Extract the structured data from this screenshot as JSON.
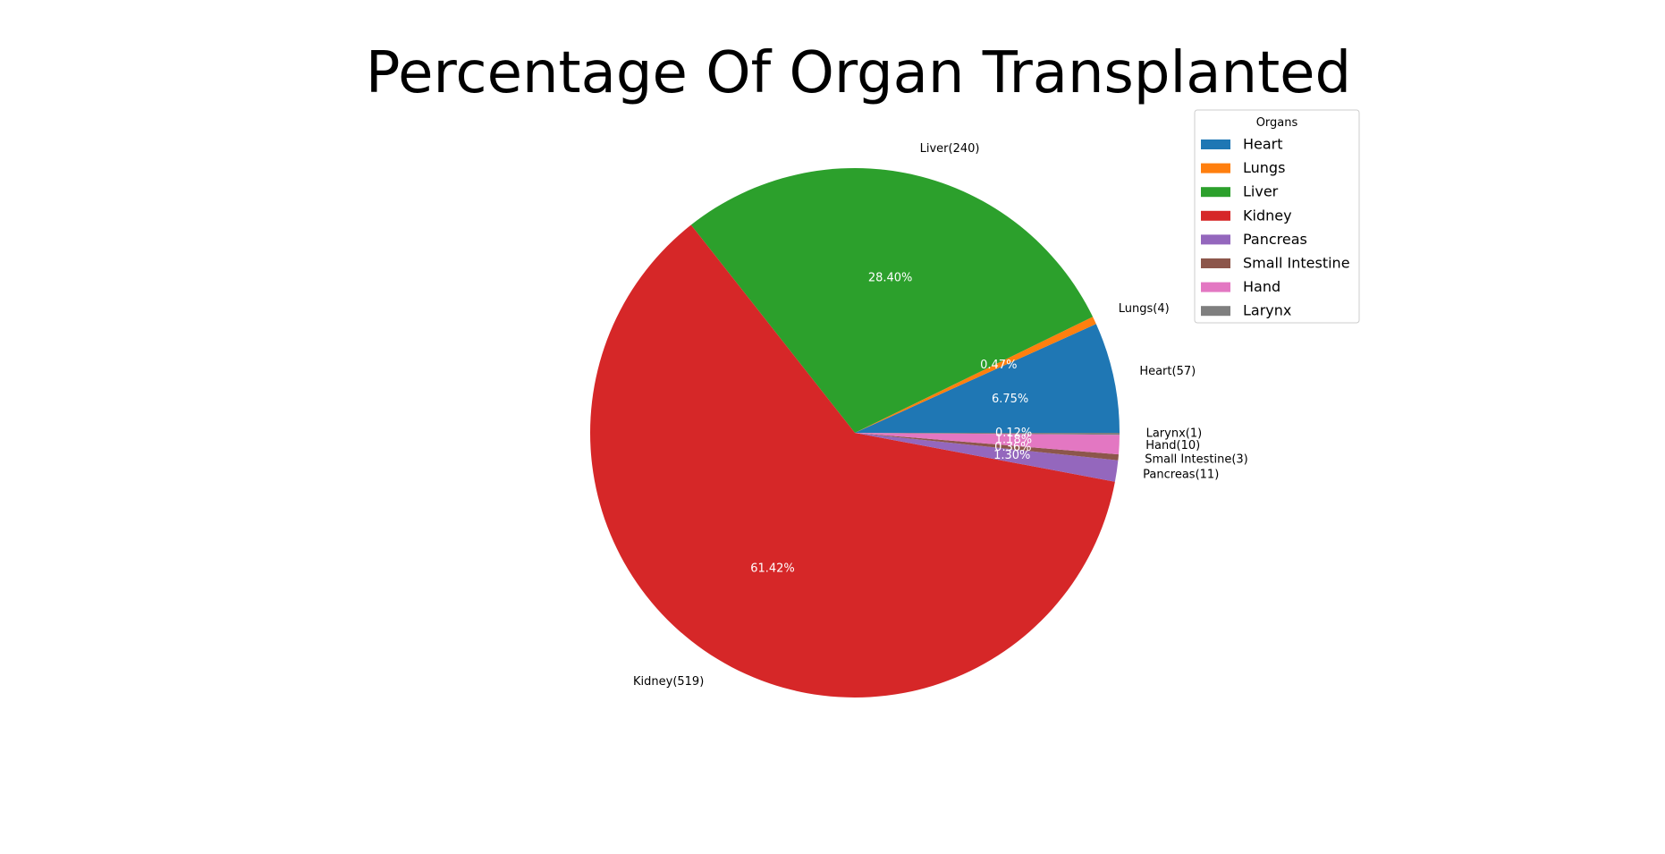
{
  "chart_data": {
    "type": "pie",
    "title": "Percentage Of Organ Transplanted",
    "legend": {
      "title": "Organs",
      "placement": "top-right"
    },
    "slices": [
      {
        "name": "Heart",
        "value": 57,
        "label": "Heart(57)",
        "pct_label": "6.75%",
        "color": "#1f77b4"
      },
      {
        "name": "Lungs",
        "value": 4,
        "label": "Lungs(4)",
        "pct_label": "0.47%",
        "color": "#ff7f0e"
      },
      {
        "name": "Liver",
        "value": 240,
        "label": "Liver(240)",
        "pct_label": "28.40%",
        "color": "#2ca02c"
      },
      {
        "name": "Kidney",
        "value": 519,
        "label": "Kidney(519)",
        "pct_label": "61.42%",
        "color": "#d62728"
      },
      {
        "name": "Pancreas",
        "value": 11,
        "label": "Pancreas(11)",
        "pct_label": "1.30%",
        "color": "#9467bd"
      },
      {
        "name": "Small Intestine",
        "value": 3,
        "label": "Small Intestine(3)",
        "pct_label": "0.36%",
        "color": "#8c564b"
      },
      {
        "name": "Hand",
        "value": 10,
        "label": "Hand(10)",
        "pct_label": "1.18%",
        "color": "#e377c2"
      },
      {
        "name": "Larynx",
        "value": 1,
        "label": "Larynx(1)",
        "pct_label": "0.12%",
        "color": "#7f7f7f"
      }
    ]
  }
}
